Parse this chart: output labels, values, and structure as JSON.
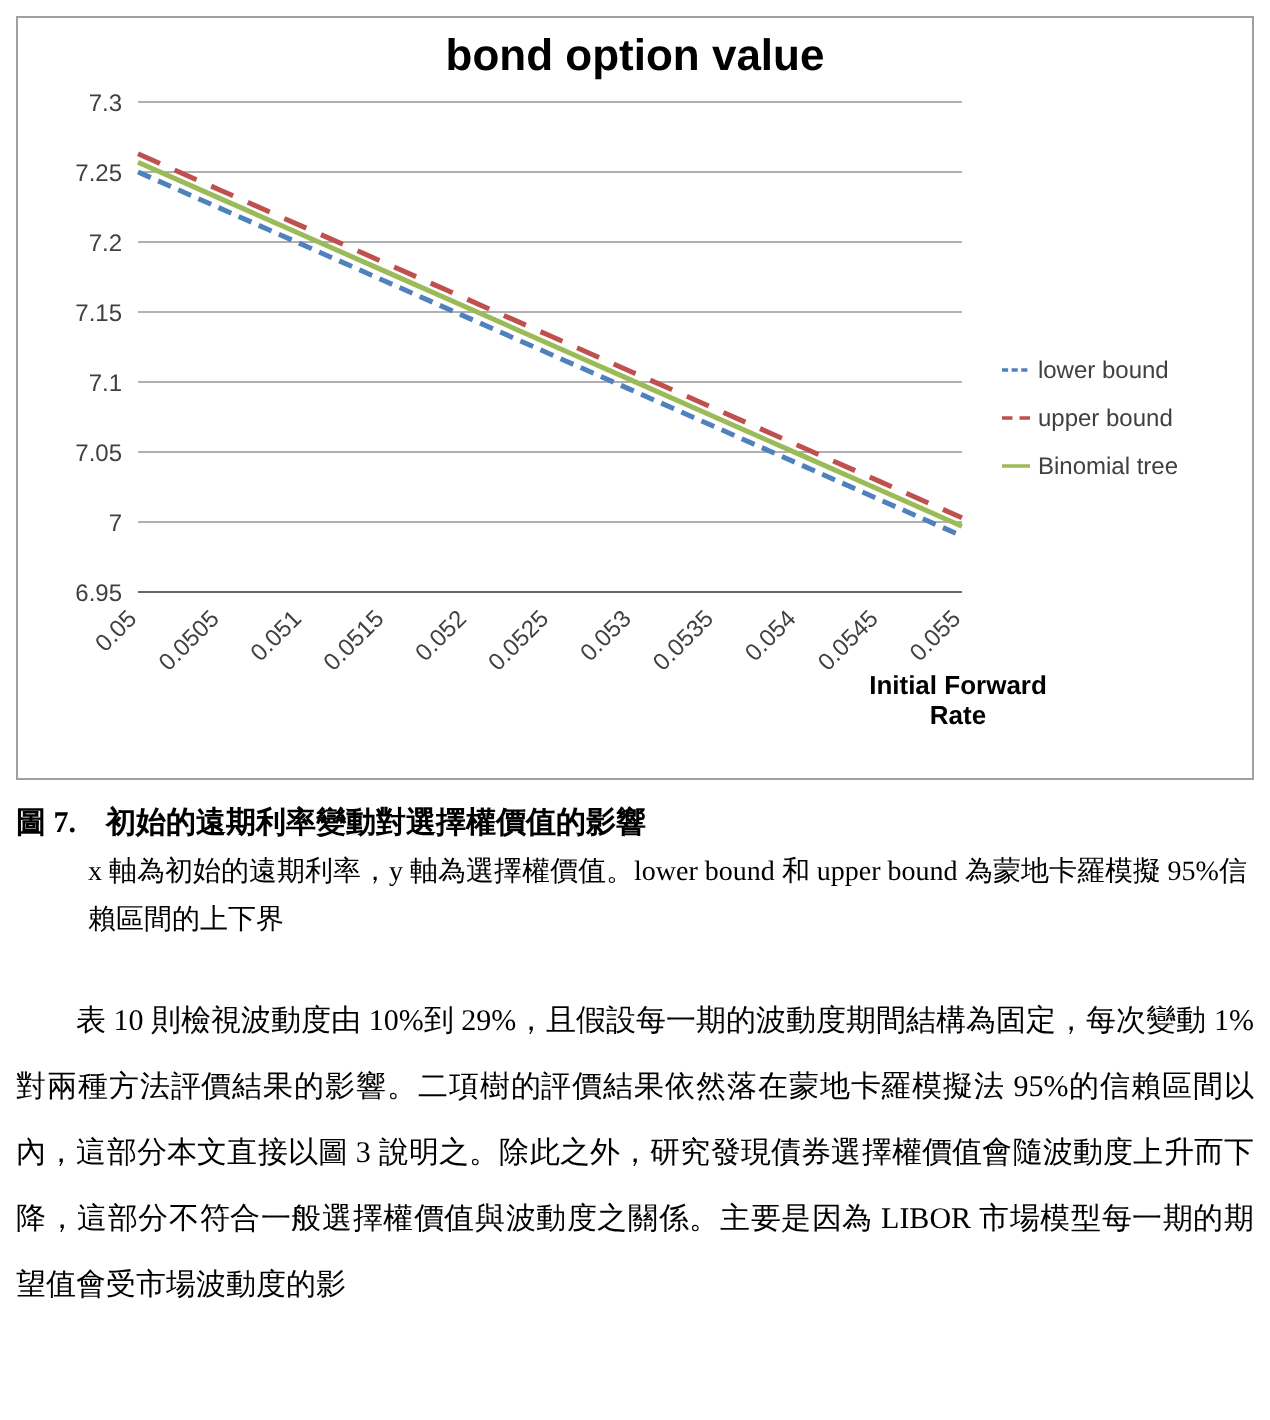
{
  "chart_data": {
    "type": "line",
    "title": "bond option value",
    "xlabel": "Initial Forward Rate",
    "categories": [
      "0.05",
      "0.0505",
      "0.051",
      "0.0515",
      "0.052",
      "0.0525",
      "0.053",
      "0.0535",
      "0.054",
      "0.0545",
      "0.055"
    ],
    "series": [
      {
        "name": "lower bound",
        "color": "#4f81bd",
        "line_style": "dashed",
        "values": [
          7.25,
          7.224,
          7.198,
          7.172,
          7.146,
          7.12,
          7.094,
          7.068,
          7.042,
          7.016,
          6.99
        ]
      },
      {
        "name": "upper bound",
        "color": "#c0504d",
        "line_style": "dashed",
        "values": [
          7.263,
          7.237,
          7.211,
          7.185,
          7.159,
          7.133,
          7.107,
          7.081,
          7.055,
          7.029,
          7.003
        ]
      },
      {
        "name": "Binomial tree",
        "color": "#9bbb59",
        "line_style": "solid",
        "values": [
          7.257,
          7.231,
          7.205,
          7.179,
          7.153,
          7.127,
          7.101,
          7.075,
          7.049,
          7.023,
          6.997
        ]
      }
    ],
    "ylim": [
      6.95,
      7.3
    ],
    "yticks": [
      6.95,
      7,
      7.05,
      7.1,
      7.15,
      7.2,
      7.25,
      7.3
    ],
    "grid": "y",
    "legend": "right",
    "marker": "none",
    "annotations": [
      "圖 7.　初始的遠期利率變動對選擇權價值的影響",
      "x 軸為初始的遠期利率，y 軸為選擇權價值。lower bound 和 upper bound 為蒙地卡羅模擬 95%信賴區間的上下界",
      "表 10 則檢視波動度由 10%到 29%，且假設每一期的波動度期間結構為固定，每次變動 1%對兩種方法評價結果的影響。二項樹的評價結果依然落在蒙地卡羅模擬法 95%的信賴區間以內，這部分本文直接以圖 3 說明之。除此之外，研究發現債券選擇權價值會隨波動度上升而下降，這部分不符合一般選擇權價值與波動度之關係。主要是因為 LIBOR 市場模型每一期的期望值會受市場波動度的影"
    ]
  }
}
